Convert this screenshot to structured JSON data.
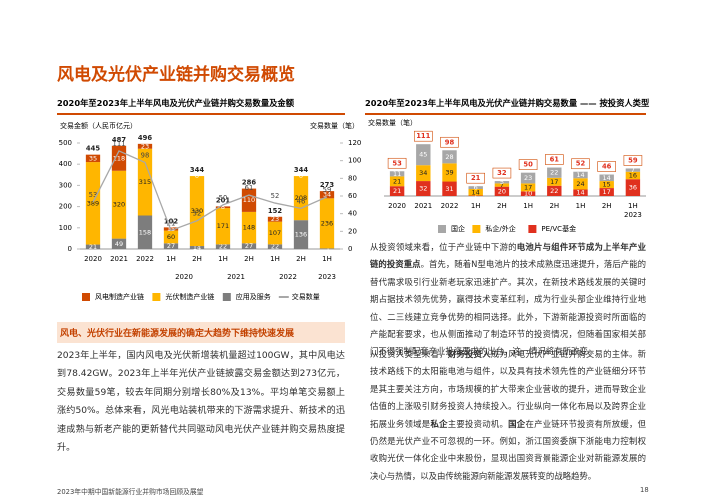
{
  "title": "风电及光伏产业链并购交易概览",
  "chart_data": [
    {
      "type": "bar",
      "stacked": true,
      "title": "2020年至2023年上半年风电及光伏产业链并购交易数量及金额",
      "y_label": "交易金额（人民币亿元）",
      "y2_label": "交易数量（笔）",
      "categories": [
        "2020",
        "2021",
        "2022",
        "1H",
        "2H",
        "1H",
        "2H",
        "1H",
        "2H",
        "1H"
      ],
      "category_groups": [
        null,
        null,
        null,
        "2020",
        "2020",
        "2021",
        "2021",
        "2022",
        "2022",
        "2023"
      ],
      "series": [
        {
          "name": "应用及服务",
          "type": "bar",
          "color": "#7d7d7d",
          "values": [
            21,
            49,
            158,
            27,
            14,
            22,
            27,
            22,
            136,
            3
          ]
        },
        {
          "name": "光伏制造产业链",
          "type": "bar",
          "color": "#ffb600",
          "values": [
            389,
            320,
            315,
            60,
            330,
            171,
            148,
            107,
            208,
            236
          ]
        },
        {
          "name": "风电制造产业链",
          "type": "bar",
          "color": "#d04a02",
          "values": [
            35,
            118,
            23,
            15,
            0,
            8,
            110,
            23,
            0,
            34
          ]
        },
        {
          "name": "交易数量",
          "type": "line",
          "axis": "y2",
          "color": "#a8a8a8",
          "values": [
            53,
            111,
            98,
            21,
            32,
            50,
            61,
            52,
            46,
            59
          ]
        }
      ],
      "totals": [
        445,
        487,
        496,
        102,
        344,
        201,
        286,
        152,
        344,
        273
      ],
      "legend_order": [
        2,
        1,
        0,
        3
      ],
      "ylim": [
        0,
        500
      ],
      "yticks": [
        0,
        100,
        200,
        300,
        400,
        500
      ],
      "y2lim": [
        0,
        120
      ],
      "y2ticks": [
        0,
        20,
        40,
        60,
        80,
        100,
        120
      ],
      "legend": "bottom"
    },
    {
      "type": "bar",
      "stacked": true,
      "title": "2020年至2023年上半年风电及光伏产业链并购交易数量 —— 按投资人类型",
      "y_label": "交易数量（笔）",
      "categories": [
        "2020",
        "2021",
        "2022",
        "1H",
        "2H",
        "1H",
        "2H",
        "1H",
        "2H",
        "1H"
      ],
      "category_groups": [
        null,
        null,
        null,
        null,
        null,
        null,
        null,
        null,
        null,
        "2023"
      ],
      "series": [
        {
          "name": "PE/VC基金",
          "type": "bar",
          "color": "#e0301e",
          "values": [
            21,
            32,
            31,
            1,
            20,
            10,
            22,
            14,
            17,
            36
          ]
        },
        {
          "name": "私企/外企",
          "type": "bar",
          "color": "#ffb600",
          "values": [
            21,
            34,
            39,
            14,
            7,
            17,
            17,
            24,
            15,
            16
          ]
        },
        {
          "name": "国企",
          "type": "bar",
          "color": "#a7a7a7",
          "values": [
            11,
            45,
            28,
            6,
            5,
            23,
            22,
            14,
            14,
            7
          ]
        }
      ],
      "totals": [
        53,
        111,
        98,
        21,
        32,
        50,
        61,
        52,
        46,
        59
      ],
      "legend_order": [
        2,
        1,
        0
      ],
      "ylim": [
        0,
        120
      ],
      "legend": "bottom"
    }
  ],
  "left_section": {
    "heading": "风电、光伏行业在新能源发展的确定大趋势下维持快速发展",
    "paragraph": [
      {
        "text": "2023年上半年，国内风电及光伏新增装机量超过100GW，其中风电达到78.42GW。2023年上半年光伏产业链披露交易金额达到273亿元，交易数量59笔，较去年同期分别增长80%及13%。平均单笔交易额上涨约50%。总体来看，风光电站装机带来的下游需求提升、新技术的迅速成熟与新老产能的更新替代共同驱动风电光伏产业链并购交易热度提升。",
        "bold": false
      }
    ]
  },
  "right_section": {
    "paragraphs": [
      [
        {
          "text": "从投资领域来看，位于产业链中下游的",
          "bold": false
        },
        {
          "text": "电池片与组件环节成为上半年产业链的投资重点",
          "bold": true
        },
        {
          "text": "。首先，随着N型电池片的技术成熟度迅速提升，落后产能的替代需求吸引行业新老玩家迅速扩产。其次，在新技术路线发展的关键时期占据技术领先优势，赢得技术变革红利，成为行业头部企业维持行业地位、二三线建立竞争优势的相同选择。此外，下游新能源投资时所面临的产能配套要求，也从侧面推动了制造环节的投资情况，但随着国家相关部门不得强制配套产业投资要求的出台，这一情况将有所改变。",
          "bold": false
        }
      ],
      [
        {
          "text": "从投资人类型来看，",
          "bold": false
        },
        {
          "text": "财务投资人",
          "bold": true
        },
        {
          "text": "成为风电光伏产业链并购交易的主体。新技术路线下的太阳能电池与组件，以及具有技术领先性的产业链细分环节是其主要关注方向，市场规模的扩大带来企业营收的提升，进而导致企业估值的上涨吸引财务投资人持续投入。行业纵向一体化布局以及跨界企业拓展业务领域是",
          "bold": false
        },
        {
          "text": "私企",
          "bold": true
        },
        {
          "text": "主要投资动机。",
          "bold": false
        },
        {
          "text": "国企",
          "bold": true
        },
        {
          "text": "在产业链环节投资有所放缓，但仍然是光伏产业不可忽视的一环。例如，浙江国资委旗下浙能电力控制权收购光伏一体化企业中来股份，显现出国资背景能源企业对新能源发展的决心与热情，以及由传统能源向新能源发展转变的战略趋势。",
          "bold": false
        }
      ]
    ]
  },
  "footer": {
    "text": "2023年中期中国新能源行业并购市场回顾及展望",
    "page": "18"
  }
}
